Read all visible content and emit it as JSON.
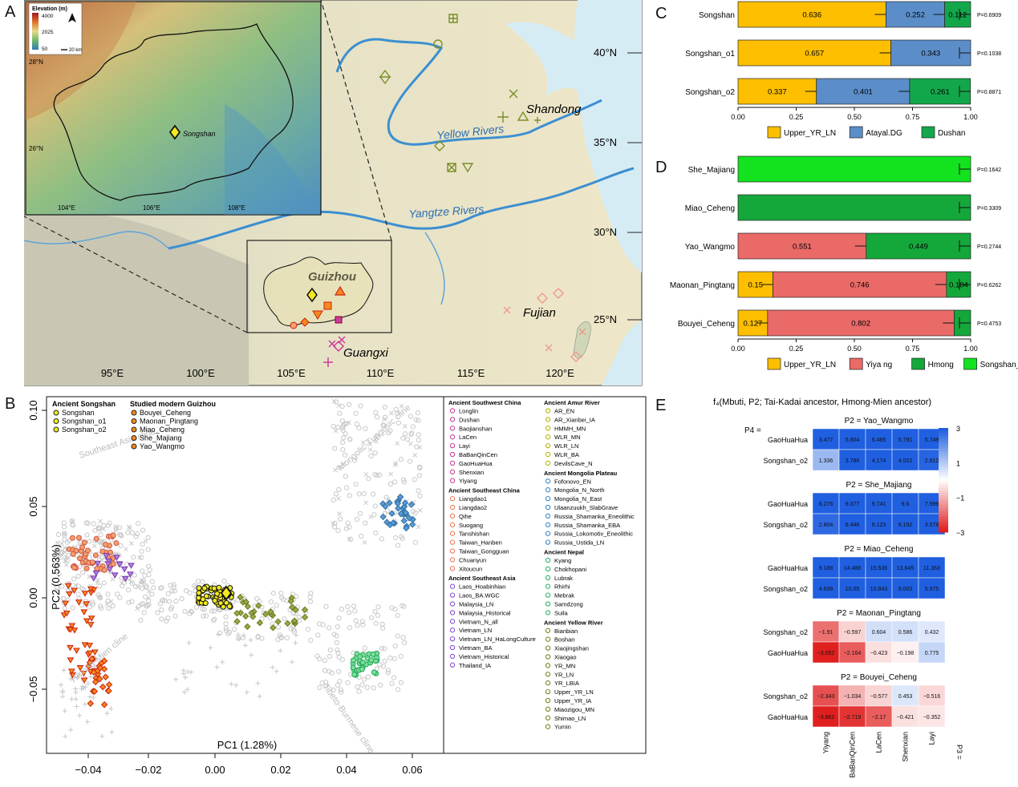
{
  "panel_labels": {
    "a": "A",
    "b": "B",
    "c": "C",
    "d": "D",
    "e": "E"
  },
  "map": {
    "inset_legend_title": "Elevation (m)",
    "inset_legend_ticks": [
      "4000",
      "2025",
      "50"
    ],
    "inset_scale": "20 km",
    "inset_site": "Songshan",
    "inset_lat_labels": [
      "28°N",
      "26°N"
    ],
    "inset_lon_labels": [
      "104°E",
      "106°E",
      "108°E"
    ],
    "rivers": [
      "Yellow Rivers",
      "Yangtze Rivers"
    ],
    "regions": [
      "Shandong",
      "Guizhou",
      "Fujian",
      "Guangxi"
    ],
    "lat_labels": [
      "40°N",
      "35°N",
      "30°N",
      "25°N"
    ],
    "lon_labels": [
      "95°E",
      "100°E",
      "105°E",
      "110°E",
      "115°E",
      "120°E"
    ]
  },
  "pca": {
    "xlabel": "PC1 (1.28%)",
    "ylabel": "PC2 (0.563%)",
    "x_ticks": [
      "−0.04",
      "−0.02",
      "0.00",
      "0.02",
      "0.04",
      "0.06"
    ],
    "y_ticks": [
      "0.10",
      "0.05",
      "0.00",
      "−0.05"
    ],
    "clines": [
      "Southeast Asia cline",
      "Mongolic-Tungusic cline",
      "Hmong-Mien cline",
      "Tibeto-Burmese cline"
    ],
    "legend_left": [
      {
        "heading": "Ancient Songshan",
        "items": [
          "Songshan",
          "Songshan_o1",
          "Songshan_o2"
        ]
      },
      {
        "heading": "Studied modern Guizhou",
        "items": [
          "Bouyei_Ceheng",
          "Maonan_Pingtang",
          "Miao_Ceheng",
          "She_Majiang",
          "Yao_Wangmo"
        ]
      }
    ],
    "legend_col1": [
      {
        "heading": "Ancient Southwest China",
        "items": [
          "Longlin",
          "Dushan",
          "Baojianshan",
          "LaCen",
          "Layi",
          "BaBanQinCen",
          "GaoHuaHua",
          "Shenxian",
          "Yiyang"
        ]
      },
      {
        "heading": "Ancient Southeast China",
        "items": [
          "Liangdao1",
          "Liangdao2",
          "Qihe",
          "Suogang",
          "Tanshishan",
          "Taiwan_Hanben",
          "Taiwan_Gongguan",
          "Chuanyun",
          "Xitoucun"
        ]
      },
      {
        "heading": "Ancient Southeast Asia",
        "items": [
          "Laos_Hoabinhian",
          "Laos_BA.WGC",
          "Malaysia_LN",
          "Malaysia_Historical",
          "Vietnam_N_all",
          "Vietnam_LN",
          "Vietnam_LN_HaLongCulture",
          "Vietnam_BA",
          "Vietnam_Historical",
          "Thailand_IA"
        ]
      }
    ],
    "legend_col2": [
      {
        "heading": "Ancient Amur River",
        "items": [
          "AR_EN",
          "AR_Xianbei_IA",
          "HMMH_MN",
          "WLR_MN",
          "WLR_LN",
          "WLR_BA",
          "DevilsCave_N"
        ]
      },
      {
        "heading": "Ancient Mongolia Plateau",
        "items": [
          "Fofonovo_EN",
          "Mongolia_N_North",
          "Mongolia_N_East",
          "Ulaanzuukh_SlabGrave",
          "Russia_Shamanka_Eneolithic",
          "Russia_Shamanka_EBA",
          "Russia_Lokomotiv_Eneolithic",
          "Russia_Ustida_LN"
        ]
      },
      {
        "heading": "Ancient Nepal",
        "items": [
          "Kyang",
          "Chokhopani",
          "Lubrak",
          "Rhirhi",
          "Mebrak",
          "Samdzong",
          "Suila"
        ]
      },
      {
        "heading": "Ancient Yellow River",
        "items": [
          "Bianbian",
          "Boshan",
          "Xiaojingshan",
          "Xiaogao",
          "YR_MN",
          "YR_LN",
          "YR_LBIA",
          "Upper_YR_LN",
          "Upper_YR_IA",
          "Miaozigou_MN",
          "Shimao_LN",
          "Yumin"
        ]
      }
    ]
  },
  "colors": {
    "upper_yr_ln": "#fdbf00",
    "atayal": "#5b8ec9",
    "dushan": "#13a74b",
    "yiyang": "#ea6a68",
    "hmong": "#14a83b",
    "songshan_o2": "#12e31e",
    "songshan": "#f2ea1f",
    "bouyei": "#f58a1d",
    "miao": "#e85c26",
    "heat_pos": "#1f5fe0",
    "heat_neg": "#e01f1f"
  },
  "chart_data": [
    {
      "type": "bar",
      "subtype": "stacked-horizontal",
      "panel": "C",
      "categories": [
        "Songshan",
        "Songshan_o1",
        "Songshan_o2"
      ],
      "series": [
        {
          "name": "Upper_YR_LN",
          "values": [
            0.636,
            0.657,
            0.337
          ]
        },
        {
          "name": "Atayal.DG",
          "values": [
            0.252,
            0.343,
            0.401
          ]
        },
        {
          "name": "Dushan",
          "values": [
            0.112,
            0,
            0.261
          ]
        }
      ],
      "p_values": [
        "P=0.6909",
        "P=0.1038",
        "P=0.8871"
      ],
      "x_ticks": [
        "0.00",
        "0.25",
        "0.50",
        "0.75",
        "1.00"
      ],
      "xlim": [
        0,
        1
      ],
      "legend_position": "bottom"
    },
    {
      "type": "bar",
      "subtype": "stacked-horizontal",
      "panel": "D",
      "categories": [
        "She_Majiang",
        "Miao_Ceheng",
        "Yao_Wangmo",
        "Maonan_Pingtang",
        "Bouyei_Ceheng"
      ],
      "series": [
        {
          "name": "Upper_YR_LN",
          "values": [
            0,
            0,
            0,
            0.15,
            0.127
          ]
        },
        {
          "name": "Yiya ng",
          "values": [
            0,
            0,
            0.551,
            0.746,
            0.802
          ]
        },
        {
          "name": "Hmong",
          "values": [
            0,
            1,
            0.449,
            0.104,
            0.071
          ]
        },
        {
          "name": "Songshan_o2",
          "values": [
            1,
            0,
            0,
            0,
            0
          ]
        }
      ],
      "p_values": [
        "P=0.1642",
        "P=0.3309",
        "P=0.2744",
        "P=0.6262",
        "P=0.4753"
      ],
      "x_ticks": [
        "0.00",
        "0.25",
        "0.50",
        "0.75",
        "1.00"
      ],
      "xlim": [
        0,
        1
      ],
      "legend_position": "bottom"
    },
    {
      "type": "heatmap",
      "panel": "E",
      "title": "f₄(Mbuti, P2; Tai-Kadai ancestor, Hmong-Mien ancestor)",
      "p4_label": "P4 =",
      "p3_label": "P3 =",
      "columns": [
        "Yiyang",
        "BaBanQinCen",
        "LaCen",
        "Shenxian",
        "Layi"
      ],
      "color_range": [
        -3,
        3
      ],
      "colorbar_ticks": [
        "3",
        "1",
        "−1",
        "−3"
      ],
      "blocks": [
        {
          "label": "P2 = Yao_Wangmo",
          "rows": [
            "GaoHuaHua",
            "Songshan_o2"
          ],
          "values": [
            [
              3.477,
              5.804,
              6.485,
              5.791,
              5.749
            ],
            [
              1.336,
              3.786,
              4.174,
              4.022,
              2.912
            ]
          ]
        },
        {
          "label": "P2 = She_Majiang",
          "rows": [
            "GaoHuaHua",
            "Songshan_o2"
          ],
          "values": [
            [
              6.276,
              9.377,
              9.741,
              9.6,
              7.999
            ],
            [
              2.804,
              6.446,
              6.123,
              6.192,
              3.578
            ]
          ]
        },
        {
          "label": "P2 = Miao_Ceheng",
          "rows": [
            "GaoHuaHua",
            "Songshan_o2"
          ],
          "values": [
            [
              9.188,
              14.488,
              15.536,
              13.645,
              11.363
            ],
            [
              4.639,
              10.05,
              10.843,
              9.003,
              5.975
            ]
          ]
        },
        {
          "label": "P2 = Maonan_Pingtang",
          "rows": [
            "Songshan_o2",
            "GaoHuaHua"
          ],
          "values": [
            [
              -1.91,
              -0.597,
              0.604,
              0.586,
              0.432
            ],
            [
              -3.052,
              -2.164,
              -0.423,
              -0.198,
              0.775
            ]
          ]
        },
        {
          "label": "P2 = Bouyei_Ceheng",
          "rows": [
            "Songshan_o2",
            "GaoHuaHua"
          ],
          "values": [
            [
              -2.343,
              -1.034,
              -0.577,
              0.453,
              -0.516
            ],
            [
              -3.862,
              -2.719,
              -2.17,
              -0.421,
              -0.352
            ]
          ]
        }
      ]
    }
  ]
}
